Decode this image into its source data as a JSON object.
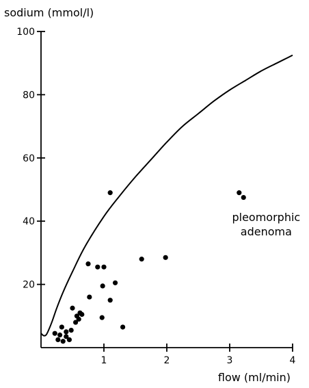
{
  "chart_data": {
    "type": "scatter",
    "title": "",
    "ylabel": "sodium (mmol/l)",
    "xlabel": "flow (ml/min)",
    "xlim": [
      0,
      4
    ],
    "ylim": [
      0,
      100
    ],
    "x_ticks": [
      1,
      2,
      3,
      4
    ],
    "y_ticks": [
      20,
      40,
      60,
      80,
      100
    ],
    "grid": false,
    "legend": "none",
    "series": [
      {
        "type": "scatter",
        "points": [
          [
            0.22,
            4.5
          ],
          [
            0.27,
            2.5
          ],
          [
            0.3,
            4.0
          ],
          [
            0.33,
            6.5
          ],
          [
            0.35,
            2.0
          ],
          [
            0.4,
            3.5
          ],
          [
            0.4,
            5.0
          ],
          [
            0.45,
            2.5
          ],
          [
            0.48,
            5.5
          ],
          [
            0.5,
            12.5
          ],
          [
            0.55,
            8.0
          ],
          [
            0.57,
            10.0
          ],
          [
            0.6,
            9.0
          ],
          [
            0.62,
            11.0
          ],
          [
            0.65,
            10.5
          ],
          [
            0.75,
            26.5
          ],
          [
            0.77,
            16.0
          ],
          [
            0.9,
            25.5
          ],
          [
            0.97,
            9.5
          ],
          [
            0.98,
            19.5
          ],
          [
            1.0,
            25.5
          ],
          [
            1.1,
            15.0
          ],
          [
            1.1,
            49.0
          ],
          [
            1.18,
            20.5
          ],
          [
            1.3,
            6.5
          ],
          [
            1.6,
            28.0
          ],
          [
            1.98,
            28.5
          ],
          [
            3.15,
            49.0
          ],
          [
            3.22,
            47.5
          ]
        ]
      },
      {
        "type": "line",
        "points": [
          [
            0.0,
            4.5
          ],
          [
            0.04,
            3.8
          ],
          [
            0.08,
            4.0
          ],
          [
            0.12,
            5.5
          ],
          [
            0.18,
            8.5
          ],
          [
            0.25,
            12.5
          ],
          [
            0.35,
            17.5
          ],
          [
            0.5,
            24.0
          ],
          [
            0.7,
            32.0
          ],
          [
            1.0,
            41.5
          ],
          [
            1.25,
            48.0
          ],
          [
            1.5,
            54.0
          ],
          [
            1.75,
            59.5
          ],
          [
            2.0,
            65.0
          ],
          [
            2.25,
            70.0
          ],
          [
            2.5,
            74.0
          ],
          [
            2.75,
            78.0
          ],
          [
            3.0,
            81.5
          ],
          [
            3.25,
            84.5
          ],
          [
            3.5,
            87.5
          ],
          [
            3.75,
            90.0
          ],
          [
            4.0,
            92.5
          ]
        ]
      }
    ],
    "annotations": [
      {
        "text": "pleomorphic",
        "x": 3.58,
        "y": 40.0
      },
      {
        "text": "adenoma",
        "x": 3.58,
        "y": 35.5
      }
    ]
  }
}
